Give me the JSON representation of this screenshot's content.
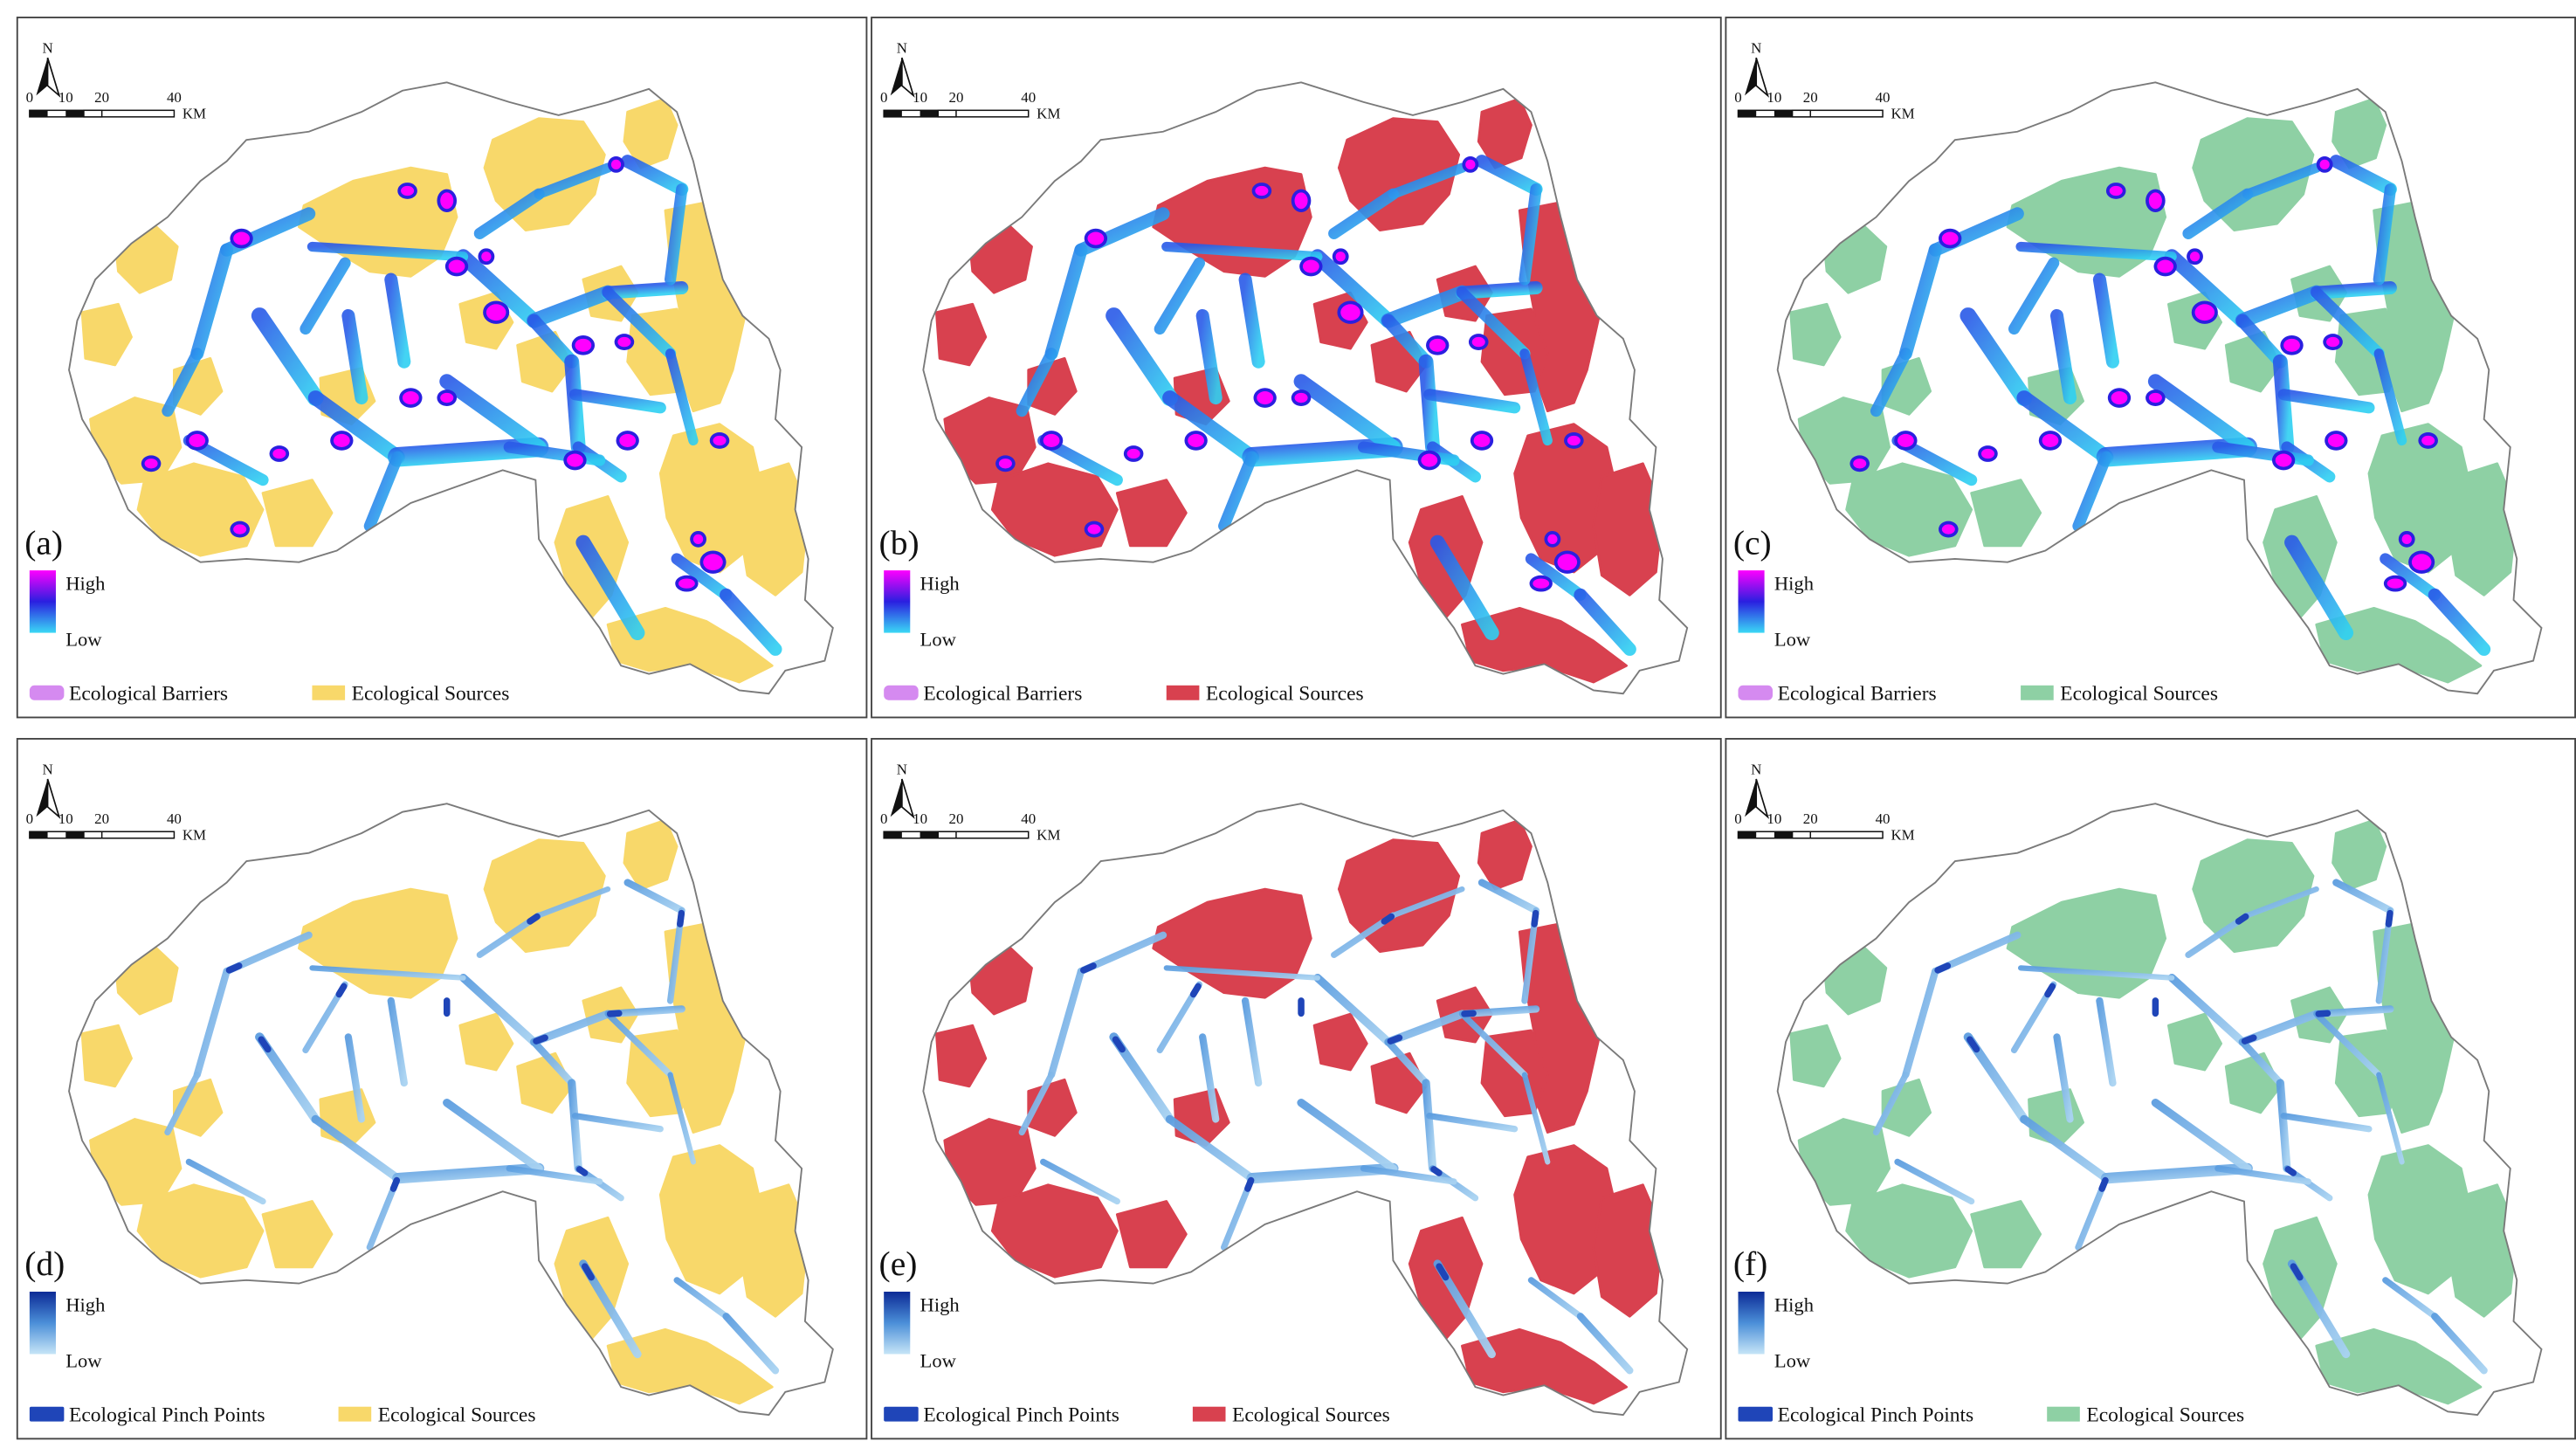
{
  "panels": [
    {
      "label": "(a)",
      "type": "barriers",
      "source_color": "#f8d86a",
      "source_legend": "Ecological Sources",
      "feature_legend": "Ecological Barriers"
    },
    {
      "label": "(b)",
      "type": "barriers",
      "source_color": "#d8414f",
      "source_legend": "Ecological Sources",
      "feature_legend": "Ecological Barriers"
    },
    {
      "label": "(c)",
      "type": "barriers",
      "source_color": "#8ed0a4",
      "source_legend": "Ecological Sources",
      "feature_legend": "Ecological Barriers"
    },
    {
      "label": "(d)",
      "type": "pinch",
      "source_color": "#f8d86a",
      "source_legend": "Ecological Sources",
      "feature_legend": "Ecological Pinch Points"
    },
    {
      "label": "(e)",
      "type": "pinch",
      "source_color": "#d8414f",
      "source_legend": "Ecological Sources",
      "feature_legend": "Ecological Pinch Points"
    },
    {
      "label": "(f)",
      "type": "pinch",
      "source_color": "#8ed0a4",
      "source_legend": "Ecological Sources",
      "feature_legend": "Ecological Pinch Points"
    }
  ],
  "north_label": "N",
  "scale": {
    "ticks": [
      "0",
      "10",
      "20",
      "40"
    ],
    "unit": "KM"
  },
  "gradient_labels": {
    "high": "High",
    "low": "Low"
  },
  "colors": {
    "barrier_swatch": "#d58af0",
    "pinch_swatch": "#1f45b8",
    "barrier_ramp": [
      "#ff00ff",
      "#2a1fe0",
      "#3ad8f5"
    ],
    "pinch_ramp": [
      "#0c2a96",
      "#4b8fd8",
      "#c6e5f7"
    ],
    "frame": "#444444",
    "boundary": "#7a7a7a"
  },
  "icons": {
    "north_arrow": "north-arrow-icon"
  }
}
